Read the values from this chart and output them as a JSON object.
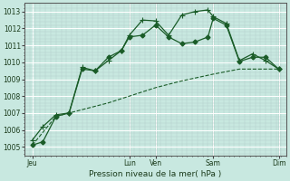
{
  "background_color": "#c8e8e0",
  "grid_color": "#b8d8d0",
  "line_color": "#1a5c28",
  "title": "Pression niveau de la mer( hPa )",
  "ylim": [
    1004.5,
    1013.5
  ],
  "yticks": [
    1005,
    1006,
    1007,
    1008,
    1009,
    1010,
    1011,
    1012,
    1013
  ],
  "xlim": [
    0,
    10
  ],
  "day_labels": [
    "Jeu",
    "Lun",
    "Ven",
    "Sam",
    "Dim"
  ],
  "day_positions": [
    0.3,
    4.0,
    5.0,
    7.2,
    9.7
  ],
  "vline_positions": [
    4.0,
    5.0,
    7.2,
    9.7
  ],
  "line1_x": [
    0.3,
    0.7,
    1.2,
    1.7,
    2.2,
    2.7,
    3.2,
    3.7,
    4.0,
    4.5,
    5.0,
    5.5,
    6.0,
    6.5,
    7.0,
    7.2,
    7.7,
    8.2,
    8.7,
    9.2,
    9.7
  ],
  "line1_y": [
    1005.1,
    1005.3,
    1006.8,
    1007.0,
    1009.6,
    1009.5,
    1010.3,
    1010.7,
    1011.5,
    1011.6,
    1012.2,
    1011.5,
    1011.1,
    1011.2,
    1011.5,
    1012.6,
    1012.2,
    1010.05,
    1010.3,
    1010.3,
    1009.6
  ],
  "line2_x": [
    0.3,
    0.7,
    1.2,
    1.7,
    2.2,
    2.7,
    3.2,
    3.7,
    4.0,
    4.5,
    5.0,
    5.5,
    6.0,
    6.5,
    7.0,
    7.2,
    7.7,
    8.2,
    8.7,
    9.2,
    9.7
  ],
  "line2_y": [
    1005.4,
    1006.2,
    1006.9,
    1007.0,
    1009.7,
    1009.5,
    1010.1,
    1010.7,
    1011.6,
    1012.5,
    1012.45,
    1011.6,
    1012.8,
    1013.0,
    1013.1,
    1012.7,
    1012.3,
    1010.1,
    1010.5,
    1010.1,
    1009.6
  ],
  "line3_x": [
    0.3,
    1.2,
    2.2,
    3.2,
    4.0,
    5.0,
    6.0,
    7.2,
    8.2,
    9.7
  ],
  "line3_y": [
    1005.1,
    1006.8,
    1007.2,
    1007.6,
    1008.0,
    1008.5,
    1008.9,
    1009.3,
    1009.6,
    1009.6
  ]
}
